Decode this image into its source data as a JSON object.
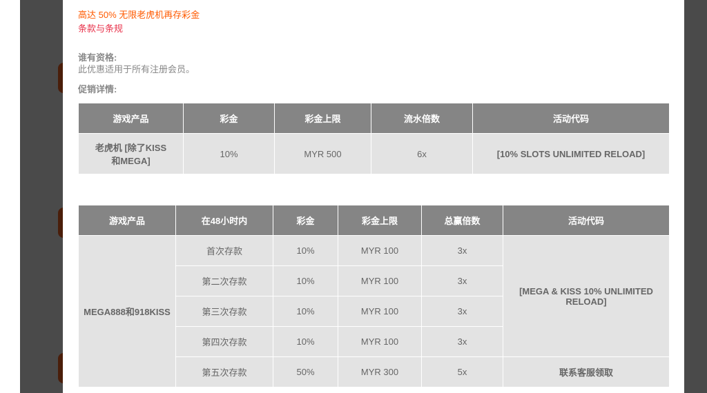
{
  "promo": {
    "title": "高达 50% 无限老虎机再存彩金",
    "terms_link": "条款与条规",
    "eligibility_label": "谁有资格:",
    "eligibility_text": "此优惠适用于所有注册会员。",
    "details_label": "促销详情:"
  },
  "colors": {
    "title": "#ff5a00",
    "terms": "#e8314a",
    "header_bg": "#858585",
    "cell_bg": "#e3e3e3",
    "backdrop": "#4a4a4a"
  },
  "table1": {
    "headers": [
      "游戏产品",
      "彩金",
      "彩金上限",
      "流水倍数",
      "活动代码"
    ],
    "row": [
      "老虎机 [除了KISS和MEGA]",
      "10%",
      "MYR 500",
      "6x",
      "[10% SLOTS UNLIMITED RELOAD]"
    ]
  },
  "table2": {
    "headers": [
      "游戏产品",
      "在48小时内",
      "彩金",
      "彩金上限",
      "总赢倍数",
      "活动代码"
    ],
    "product": "MEGA888和918KISS",
    "rows": [
      [
        "首次存款",
        "10%",
        "MYR 100",
        "3x"
      ],
      [
        "第二次存款",
        "10%",
        "MYR 100",
        "3x"
      ],
      [
        "第三次存款",
        "10%",
        "MYR 100",
        "3x"
      ],
      [
        "第四次存款",
        "10%",
        "MYR 100",
        "3x"
      ],
      [
        "第五次存款",
        "50%",
        "MYR 300",
        "5x"
      ]
    ],
    "code_1_4": "[MEGA & KISS 10% UNLIMITED RELOAD]",
    "code_5": "联系客服领取"
  }
}
